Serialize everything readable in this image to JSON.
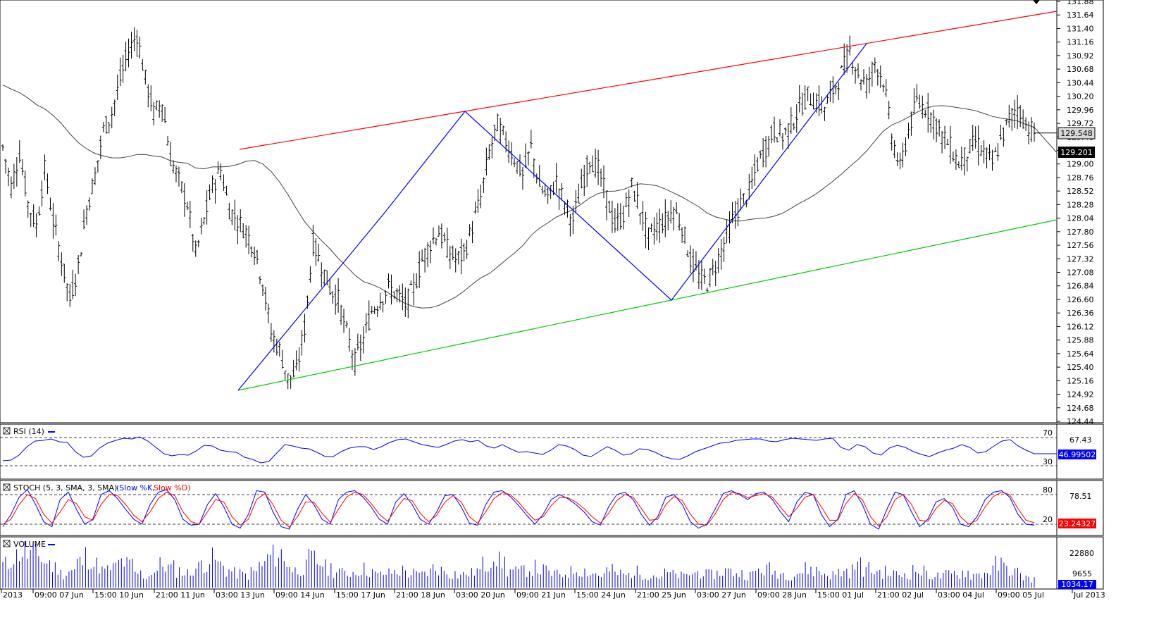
{
  "chart_data": [
    {
      "type": "ohlc",
      "pane": "price",
      "ylim": [
        124.44,
        131.88
      ],
      "y_ticks": [
        "124.44",
        "124.68",
        "124.92",
        "125.16",
        "125.40",
        "125.64",
        "125.88",
        "126.12",
        "126.36",
        "126.60",
        "126.84",
        "127.08",
        "127.32",
        "127.56",
        "127.80",
        "128.04",
        "128.28",
        "128.52",
        "128.76",
        "129.00",
        "129.24",
        "129.48",
        "129.72",
        "129.96",
        "130.20",
        "130.44",
        "130.68",
        "130.92",
        "131.16",
        "131.40",
        "131.64",
        "131.88"
      ],
      "last_price_label": "129.548",
      "ma_label": "129.201",
      "close_path": [
        129.3,
        128.6,
        129.2,
        128.3,
        127.9,
        128.9,
        128.0,
        127.3,
        126.6,
        127.2,
        128.2,
        128.8,
        129.6,
        129.9,
        130.5,
        131.0,
        131.3,
        130.5,
        129.9,
        130.1,
        129.1,
        128.7,
        128.3,
        127.4,
        128.0,
        128.6,
        128.9,
        128.2,
        128.0,
        127.8,
        127.5,
        126.9,
        126.0,
        125.7,
        125.2,
        125.3,
        126.1,
        127.6,
        127.2,
        126.8,
        126.6,
        126.0,
        125.5,
        125.9,
        126.4,
        126.6,
        126.8,
        126.7,
        126.5,
        126.8,
        127.3,
        127.6,
        127.8,
        127.5,
        127.3,
        127.4,
        127.9,
        128.4,
        129.2,
        129.7,
        129.4,
        129.1,
        128.8,
        129.3,
        128.6,
        128.4,
        128.7,
        128.3,
        128.0,
        128.6,
        129.1,
        128.9,
        128.4,
        127.9,
        128.1,
        128.6,
        128.2,
        127.7,
        127.9,
        128.0,
        128.2,
        127.9,
        127.3,
        127.0,
        126.9,
        127.2,
        127.6,
        128.0,
        128.3,
        128.5,
        129.0,
        129.3,
        129.6,
        129.5,
        129.7,
        130.0,
        130.2,
        130.1,
        130.0,
        130.3,
        130.6,
        131.0,
        130.6,
        130.4,
        130.8,
        130.5,
        129.5,
        128.9,
        129.6,
        130.1,
        130.0,
        129.8,
        129.5,
        129.3,
        129.0,
        129.2,
        129.4,
        129.2,
        129.0,
        129.4,
        129.8,
        130.0,
        129.7,
        129.55
      ]
    },
    {
      "type": "line",
      "pane": "rsi",
      "title": "RSI (14)",
      "levels": [
        "70",
        "30"
      ],
      "extra_tick": "67.43",
      "value_label": "46.99502",
      "ylim": [
        0,
        100
      ],
      "values": [
        37,
        38,
        45,
        57,
        65,
        66,
        68,
        64,
        63,
        50,
        42,
        44,
        55,
        62,
        66,
        69,
        68,
        71,
        65,
        56,
        47,
        44,
        46,
        45,
        51,
        59,
        58,
        52,
        50,
        49,
        42,
        39,
        34,
        36,
        48,
        60,
        58,
        55,
        54,
        49,
        43,
        43,
        50,
        55,
        57,
        57,
        53,
        57,
        63,
        67,
        68,
        64,
        60,
        58,
        56,
        60,
        65,
        67,
        64,
        66,
        58,
        55,
        60,
        54,
        49,
        50,
        48,
        46,
        52,
        60,
        58,
        53,
        45,
        43,
        50,
        57,
        52,
        45,
        47,
        54,
        53,
        49,
        43,
        40,
        39,
        44,
        50,
        54,
        58,
        62,
        63,
        66,
        67,
        68,
        68,
        65,
        64,
        67,
        69,
        68,
        67,
        66,
        68,
        69,
        56,
        52,
        60,
        57,
        48,
        45,
        55,
        59,
        56,
        50,
        46,
        43,
        48,
        52,
        55,
        60,
        56,
        48,
        50,
        58,
        65,
        67,
        58,
        52,
        47
      ]
    },
    {
      "type": "line",
      "pane": "stochastic",
      "title": "STOCH (5, 3, SMA, 3, SMA)",
      "legend": [
        "Slow %K",
        "Slow %D"
      ],
      "levels": [
        "80",
        "20"
      ],
      "extra_tick": "78.51",
      "value_label": "23.24327",
      "ylim": [
        0,
        100
      ],
      "series": [
        {
          "name": "Slow %K",
          "values": [
            15,
            40,
            75,
            90,
            60,
            25,
            15,
            70,
            85,
            50,
            20,
            30,
            80,
            88,
            72,
            50,
            30,
            20,
            60,
            85,
            90,
            70,
            30,
            18,
            20,
            60,
            82,
            55,
            20,
            12,
            40,
            88,
            85,
            45,
            15,
            10,
            50,
            80,
            60,
            30,
            20,
            70,
            85,
            88,
            75,
            55,
            30,
            20,
            65,
            82,
            60,
            30,
            20,
            45,
            78,
            80,
            55,
            22,
            18,
            60,
            85,
            88,
            76,
            58,
            38,
            20,
            40,
            70,
            80,
            72,
            60,
            45,
            25,
            18,
            55,
            80,
            85,
            70,
            40,
            18,
            35,
            75,
            80,
            60,
            25,
            12,
            20,
            50,
            82,
            88,
            80,
            70,
            82,
            85,
            70,
            45,
            25,
            65,
            85,
            80,
            40,
            15,
            30,
            80,
            88,
            60,
            20,
            10,
            50,
            85,
            80,
            45,
            15,
            30,
            65,
            72,
            55,
            20,
            15,
            35,
            70,
            85,
            88,
            75,
            40,
            20,
            18
          ]
        },
        {
          "name": "Slow %D",
          "values": [
            20,
            30,
            60,
            80,
            72,
            40,
            22,
            45,
            70,
            62,
            35,
            28,
            60,
            80,
            78,
            60,
            38,
            25,
            45,
            72,
            85,
            78,
            45,
            25,
            20,
            45,
            70,
            65,
            35,
            18,
            30,
            70,
            82,
            60,
            28,
            14,
            35,
            65,
            65,
            42,
            24,
            50,
            75,
            85,
            80,
            62,
            40,
            26,
            50,
            72,
            68,
            42,
            25,
            38,
            65,
            78,
            65,
            35,
            22,
            45,
            72,
            84,
            80,
            65,
            45,
            28,
            35,
            58,
            74,
            74,
            65,
            52,
            35,
            22,
            42,
            68,
            80,
            75,
            52,
            28,
            30,
            60,
            76,
            68,
            40,
            20,
            18,
            40,
            70,
            84,
            82,
            74,
            78,
            82,
            75,
            55,
            35,
            52,
            75,
            80,
            55,
            28,
            28,
            62,
            82,
            70,
            35,
            16,
            35,
            70,
            80,
            60,
            28,
            26,
            52,
            68,
            62,
            35,
            20,
            28,
            55,
            76,
            85,
            80,
            52,
            28,
            23
          ]
        }
      ]
    },
    {
      "type": "bar",
      "pane": "volume",
      "title": "VOLUME",
      "y_ticks": [
        "22880",
        "9655"
      ],
      "value_label": "1034.17",
      "x_ticks": [
        "2013",
        "09:00 07 Jun",
        "15:00 10 Jun",
        "21:00 11 Jun",
        "03:00 13 Jun",
        "09:00 14 Jun",
        "15:00 17 Jun",
        "21:00 18 Jun",
        "03:00 20 Jun",
        "09:00 21 Jun",
        "15:00 24 Jun",
        "21:00 25 Jun",
        "03:00 27 Jun",
        "09:00 28 Jun",
        "15:00 01 Jul",
        "21:00 02 Jul",
        "03:00 04 Jul",
        "09:00 05 Jul",
        "Jul 2013"
      ],
      "values": [
        16,
        22,
        26,
        24,
        22,
        18,
        14,
        10,
        12,
        18,
        22,
        16,
        12,
        14,
        18,
        16,
        10,
        8,
        12,
        16,
        14,
        12,
        10,
        14,
        18,
        20,
        16,
        12,
        10,
        9,
        11,
        16,
        22,
        24,
        18,
        12,
        14,
        20,
        18,
        14,
        12,
        10,
        11,
        13,
        12,
        9,
        10,
        11,
        12,
        10,
        9,
        11,
        14,
        12,
        10,
        9,
        10,
        12,
        16,
        24,
        18,
        12,
        11,
        13,
        14,
        12,
        10,
        9,
        11,
        13,
        12,
        10,
        9,
        12,
        10,
        9,
        11,
        10,
        9,
        8,
        10,
        9,
        8,
        10,
        11,
        9,
        10,
        12,
        11,
        10,
        9,
        12,
        13,
        11,
        10,
        9,
        11,
        13,
        12,
        10,
        9,
        11,
        12,
        16,
        13,
        12,
        11,
        10,
        9,
        10,
        12,
        11,
        9,
        8,
        9,
        10,
        11,
        9,
        10,
        12,
        16,
        14,
        11,
        8,
        6
      ]
    }
  ],
  "overlays": {
    "upper_trendline_color": "#ff0000",
    "lower_trendline_color": "#00cc00",
    "zigzag_color": "#0000ff",
    "ma_color": "#444444",
    "bar_color": "#000000",
    "volume_color": "#0000ff",
    "stoch_d_color": "#ff0000",
    "stoch_k_color": "#0000ff",
    "rsi_color": "#0000ff",
    "stoch_value_bg": "#ff0000",
    "rsi_value_bg": "#0000ff",
    "volume_value_bg": "#0000ff"
  }
}
